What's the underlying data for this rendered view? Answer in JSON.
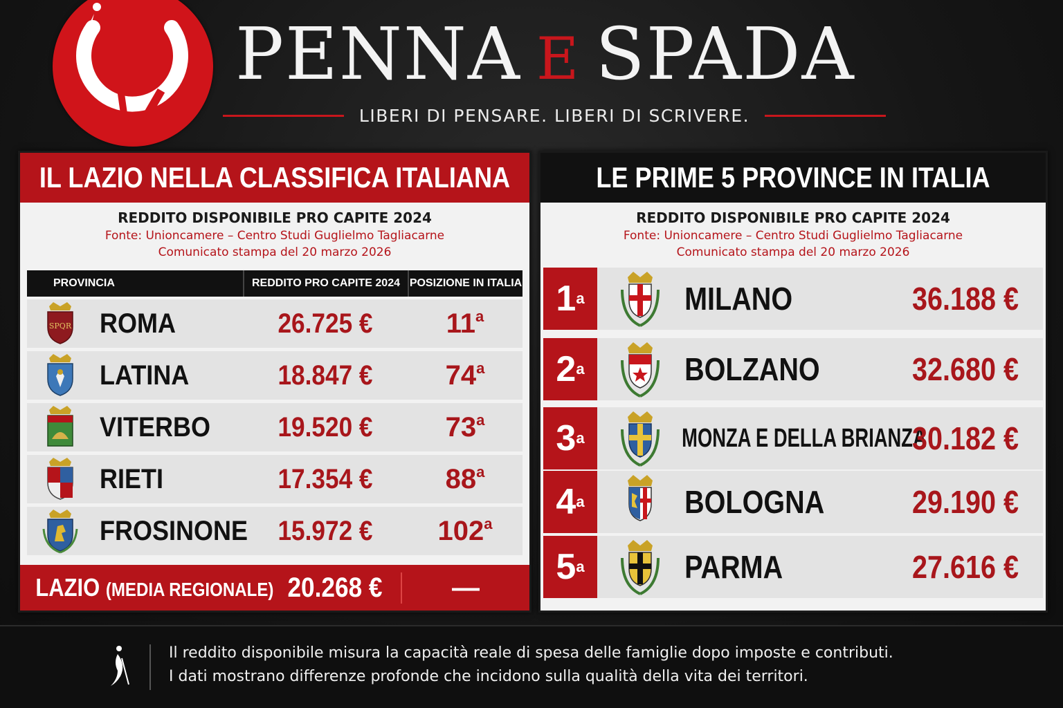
{
  "brand": {
    "name_part1": "PENNA",
    "name_conj": "E",
    "name_part2": "SPADA",
    "tagline": "LIBERI DI PENSARE.  LIBERI DI SCRIVERE."
  },
  "colors": {
    "accent_red": "#b5141a",
    "background": "#151515",
    "panel": "#f2f2f2"
  },
  "left_panel": {
    "title": "IL LAZIO NELLA CLASSIFICA ITALIANA",
    "subtitle": "REDDITO DISPONIBILE PRO CAPITE 2024",
    "source": "Fonte: Unioncamere – Centro Studi Guglielmo Tagliacarne",
    "release": "Comunicato stampa del 20 marzo 2026",
    "columns": [
      "PROVINCIA",
      "REDDITO PRO CAPITE 2024",
      "POSIZIONE IN ITALIA"
    ],
    "rows": [
      {
        "name": "ROMA",
        "value": "26.725 €",
        "position": "11",
        "suffix": "a",
        "crest_icon": "roma-crest-icon"
      },
      {
        "name": "LATINA",
        "value": "18.847 €",
        "position": "74",
        "suffix": "a",
        "crest_icon": "latina-crest-icon"
      },
      {
        "name": "VITERBO",
        "value": "19.520 €",
        "position": "73",
        "suffix": "a",
        "crest_icon": "viterbo-crest-icon"
      },
      {
        "name": "RIETI",
        "value": "17.354 €",
        "position": "88",
        "suffix": "a",
        "crest_icon": "rieti-crest-icon"
      },
      {
        "name": "FROSINONE",
        "value": "15.972 €",
        "position": "102",
        "suffix": "a",
        "crest_icon": "frosinone-crest-icon"
      }
    ],
    "total": {
      "name": "LAZIO",
      "note": "(MEDIA REGIONALE)",
      "value": "20.268 €",
      "position": "—"
    }
  },
  "right_panel": {
    "title": "LE PRIME 5 PROVINCE IN ITALIA",
    "subtitle": "REDDITO DISPONIBILE PRO CAPITE 2024",
    "source": "Fonte: Unioncamere – Centro Studi Guglielmo Tagliacarne",
    "release": "Comunicato stampa del 20 marzo 2026",
    "rows": [
      {
        "rank": "1",
        "suffix": "a",
        "name": "MILANO",
        "value": "36.188 €",
        "crest_icon": "milano-crest-icon"
      },
      {
        "rank": "2",
        "suffix": "a",
        "name": "BOLZANO",
        "value": "32.680 €",
        "crest_icon": "bolzano-crest-icon"
      },
      {
        "rank": "3",
        "suffix": "a",
        "name": "MONZA E DELLA BRIANZA",
        "value": "30.182 €",
        "crest_icon": "monza-crest-icon"
      },
      {
        "rank": "4",
        "suffix": "a",
        "name": "BOLOGNA",
        "value": "29.190 €",
        "crest_icon": "bologna-crest-icon"
      },
      {
        "rank": "5",
        "suffix": "a",
        "name": "PARMA",
        "value": "27.616 €",
        "crest_icon": "parma-crest-icon"
      }
    ]
  },
  "footer": {
    "line1": "Il reddito disponibile misura la capacità reale di spesa delle famiglie dopo imposte e contributi.",
    "line2": "I dati mostrano differenze profonde che incidono sulla qualità della vita dei territori."
  }
}
